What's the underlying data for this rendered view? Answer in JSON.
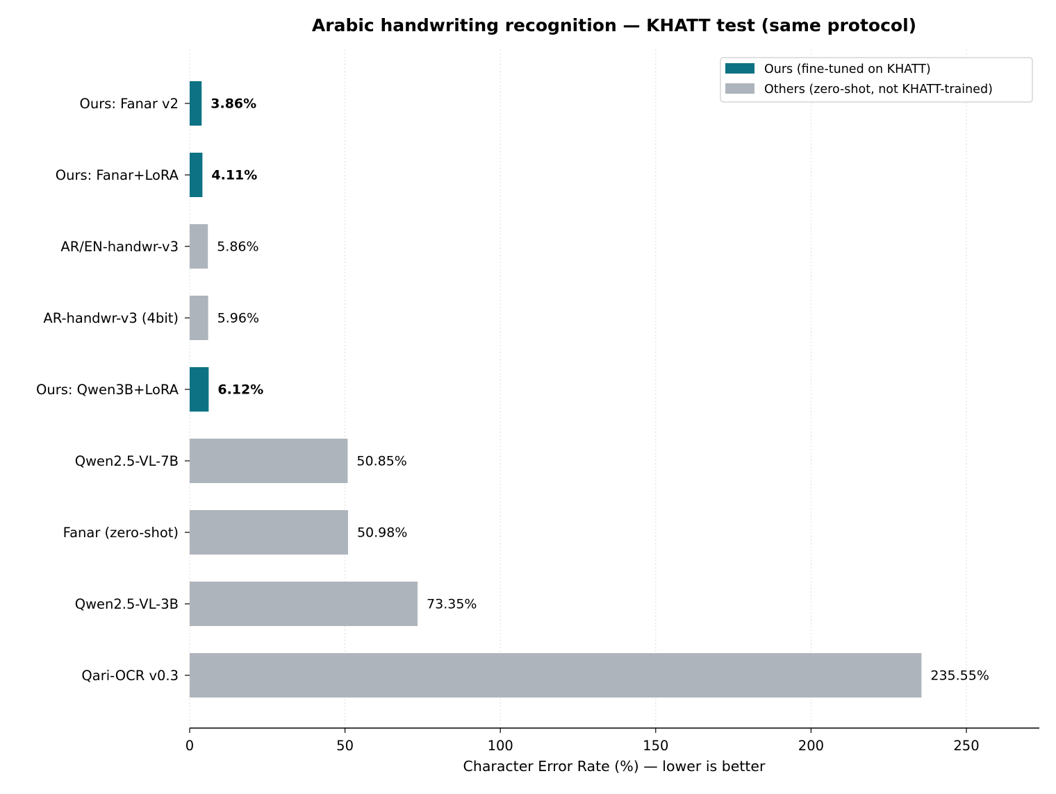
{
  "chart_data": {
    "type": "bar",
    "orientation": "horizontal",
    "title": "Arabic handwriting recognition — KHATT test (same protocol)",
    "xlabel": "Character Error Rate (%) — lower is better",
    "ylabel": "",
    "xlim": [
      0,
      273.5
    ],
    "xticks": [
      0,
      50,
      100,
      150,
      200,
      250
    ],
    "grid": "x-dotted",
    "legend_position": "top-right",
    "legend": [
      {
        "label": "Ours (fine-tuned on KHATT)",
        "color": "#0e7285"
      },
      {
        "label": "Others (zero-shot, not KHATT-trained)",
        "color": "#adb4bb"
      }
    ],
    "categories": [
      "Ours: Fanar v2",
      "Ours: Fanar+LoRA",
      "AR/EN-handwr-v3",
      "AR-handwr-v3 (4bit)",
      "Ours: Qwen3B+LoRA",
      "Qwen2.5-VL-7B",
      "Fanar (zero-shot)",
      "Qwen2.5-VL-3B",
      "Qari-OCR v0.3"
    ],
    "values": [
      3.86,
      4.11,
      5.86,
      5.96,
      6.12,
      50.85,
      50.98,
      73.35,
      235.55
    ],
    "value_labels": [
      "3.86%",
      "4.11%",
      "5.86%",
      "5.96%",
      "6.12%",
      "50.85%",
      "50.98%",
      "73.35%",
      "235.55%"
    ],
    "groups": [
      "ours",
      "ours",
      "other",
      "other",
      "ours",
      "other",
      "other",
      "other",
      "other"
    ]
  }
}
